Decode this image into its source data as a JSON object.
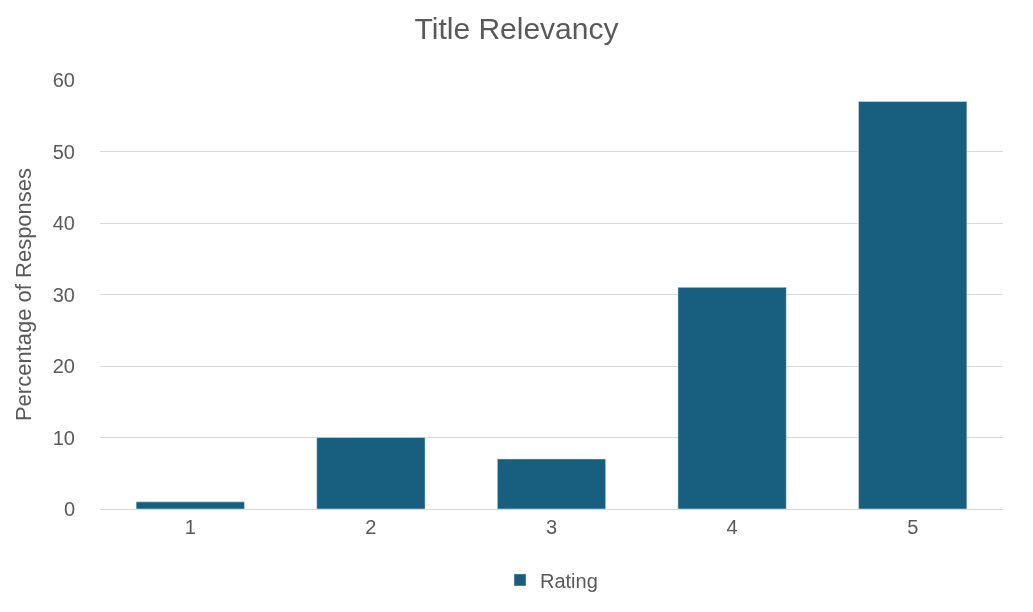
{
  "chart_data": {
    "type": "bar",
    "title": "Title Relevancy",
    "ylabel": "Percentage of Responses",
    "categories": [
      "1",
      "2",
      "3",
      "4",
      "5"
    ],
    "series": [
      {
        "name": "Rating",
        "color": "#175e7f",
        "values": [
          1,
          10,
          7,
          31,
          57
        ]
      }
    ],
    "ylim": [
      0,
      60
    ],
    "yticks": [
      0,
      10,
      20,
      30,
      40,
      50,
      60
    ],
    "grid": "y",
    "legend": "bottom"
  }
}
